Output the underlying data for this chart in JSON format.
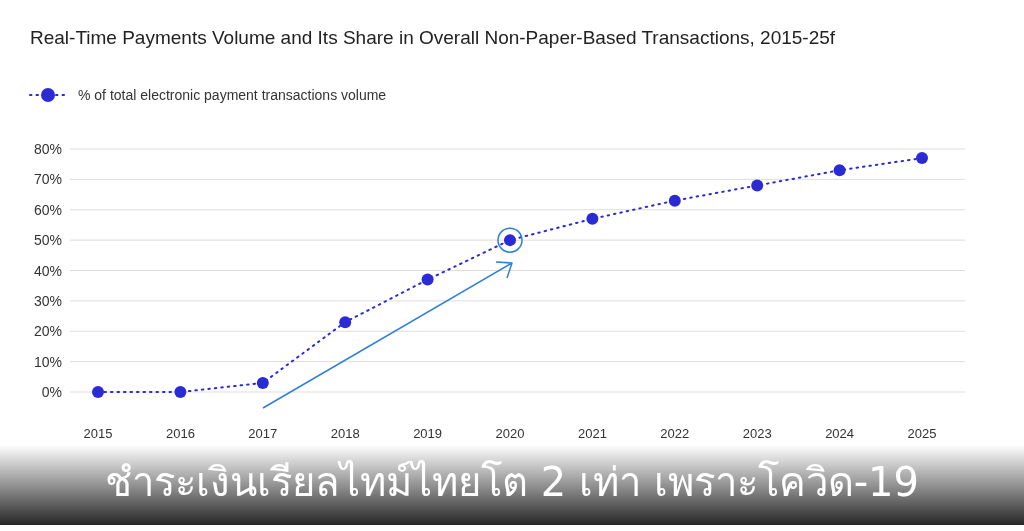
{
  "chart_data": {
    "type": "line",
    "title": "Real-Time Payments Volume and Its Share in Overall Non-Paper-Based Transactions, 2015-25f",
    "categories": [
      "2015",
      "2016",
      "2017",
      "2018",
      "2019",
      "2020",
      "2021",
      "2022",
      "2023",
      "2024",
      "2025"
    ],
    "series": [
      {
        "name": "% of total electronic payment transactions volume",
        "color": "#2b2bd6",
        "values": [
          0,
          0,
          3,
          23,
          37,
          50,
          57,
          63,
          68,
          73,
          77
        ]
      }
    ],
    "ylim": [
      0,
      80
    ],
    "yticks": [
      {
        "value": 0,
        "label": "0%"
      },
      {
        "value": 10,
        "label": "10%"
      },
      {
        "value": 20,
        "label": "20%"
      },
      {
        "value": 30,
        "label": "30%"
      },
      {
        "value": 40,
        "label": "40%"
      },
      {
        "value": 50,
        "label": "50%"
      },
      {
        "value": 60,
        "label": "60%"
      },
      {
        "value": 70,
        "label": "70%"
      },
      {
        "value": 80,
        "label": "80%"
      }
    ],
    "grid": "y",
    "legend": "top left",
    "marker": "circle",
    "line_style": "dotted",
    "annotations": [
      "ชำระเงินเรียลไทม์ไทยโต 2 เท่า เพราะโควิด-19"
    ]
  }
}
